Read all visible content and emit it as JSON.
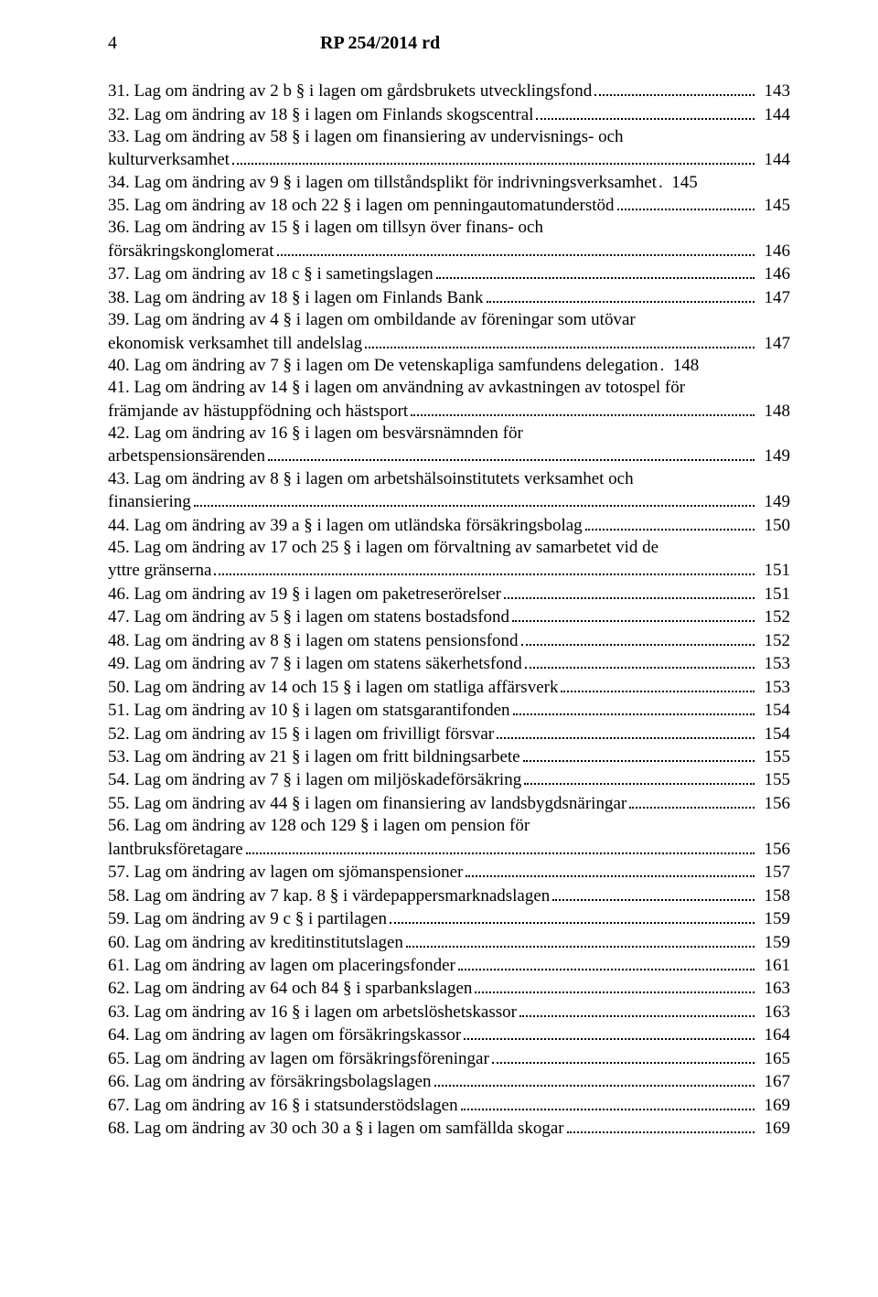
{
  "header": {
    "page_number": "4",
    "doc_title": "RP 254/2014 rd"
  },
  "toc": [
    {
      "lines": [
        "31. Lag om ändring av 2 b § i lagen om gårdsbrukets utvecklingsfond"
      ],
      "page": "143"
    },
    {
      "lines": [
        "32. Lag om ändring av 18 § i lagen om Finlands skogscentral"
      ],
      "page": "144"
    },
    {
      "lines": [
        "33. Lag om ändring av 58 § i lagen om finansiering av undervisnings- och",
        "kulturverksamhet"
      ],
      "page": "144"
    },
    {
      "lines": [
        "34. Lag om ändring av 9 § i lagen om tillståndsplikt för indrivningsverksamhet"
      ],
      "nodots": true,
      "page": "145"
    },
    {
      "lines": [
        "35. Lag om ändring av 18 och 22 § i lagen om penningautomatunderstöd"
      ],
      "page": "145"
    },
    {
      "lines": [
        "36. Lag om ändring av 15 § i lagen om tillsyn över finans- och",
        "försäkringskonglomerat"
      ],
      "page": "146"
    },
    {
      "lines": [
        "37. Lag om ändring av 18 c § i sametingslagen"
      ],
      "page": "146"
    },
    {
      "lines": [
        "38. Lag om ändring av 18 § i lagen om Finlands Bank"
      ],
      "page": "147"
    },
    {
      "lines": [
        "39. Lag om ändring av 4 § i lagen om ombildande av föreningar som utövar",
        "ekonomisk verksamhet till andelslag"
      ],
      "page": "147"
    },
    {
      "lines": [
        "40. Lag om ändring av 7 § i lagen om De vetenskapliga samfundens delegation"
      ],
      "nodots": true,
      "page": "148"
    },
    {
      "lines": [
        "41. Lag om ändring av 14 § i lagen om användning av avkastningen av totospel för",
        "främjande av hästuppfödning och hästsport"
      ],
      "page": "148"
    },
    {
      "lines": [
        "42. Lag om ändring av 16 § i lagen om besvärsnämnden för",
        "arbetspensionsärenden"
      ],
      "page": "149"
    },
    {
      "lines": [
        "43. Lag om ändring av 8 § i lagen om arbetshälsoinstitutets verksamhet och",
        "finansiering"
      ],
      "page": "149"
    },
    {
      "lines": [
        "44. Lag om ändring av 39 a § i lagen om utländska försäkringsbolag"
      ],
      "page": "150"
    },
    {
      "lines": [
        "45. Lag om ändring av 17 och 25 § i lagen om förvaltning av samarbetet vid de",
        "yttre gränserna"
      ],
      "page": "151"
    },
    {
      "lines": [
        "46. Lag om ändring av 19 § i lagen om paketreserörelser"
      ],
      "page": "151"
    },
    {
      "lines": [
        "47. Lag om ändring av 5 § i lagen om statens bostadsfond"
      ],
      "page": "152"
    },
    {
      "lines": [
        "48. Lag om ändring av 8 § i lagen om statens pensionsfond"
      ],
      "page": "152"
    },
    {
      "lines": [
        "49. Lag om ändring av 7 § i lagen om statens säkerhetsfond"
      ],
      "page": "153"
    },
    {
      "lines": [
        "50. Lag om ändring av 14 och 15 § i lagen om statliga affärsverk"
      ],
      "page": "153"
    },
    {
      "lines": [
        "51. Lag om ändring av 10 § i lagen om statsgarantifonden"
      ],
      "page": "154"
    },
    {
      "lines": [
        "52. Lag om ändring av 15 § i lagen om frivilligt försvar"
      ],
      "page": "154"
    },
    {
      "lines": [
        "53. Lag om ändring av 21 § i lagen om fritt bildningsarbete"
      ],
      "page": "155"
    },
    {
      "lines": [
        "54. Lag om ändring av 7 § i lagen om miljöskadeförsäkring"
      ],
      "page": "155"
    },
    {
      "lines": [
        "55. Lag om ändring av 44 § i lagen om finansiering av landsbygdsnäringar"
      ],
      "page": "156"
    },
    {
      "lines": [
        "56. Lag om ändring av 128 och 129 § i lagen om pension för",
        "lantbruksföretagare"
      ],
      "page": "156"
    },
    {
      "lines": [
        "57. Lag om ändring av lagen om sjömanspensioner"
      ],
      "page": "157"
    },
    {
      "lines": [
        "58. Lag om ändring av 7 kap. 8 § i värdepappersmarknadslagen"
      ],
      "page": "158"
    },
    {
      "lines": [
        "59. Lag om ändring av 9 c § i partilagen"
      ],
      "page": "159"
    },
    {
      "lines": [
        "60. Lag om ändring av kreditinstitutslagen"
      ],
      "page": "159"
    },
    {
      "lines": [
        "61. Lag om ändring av lagen om placeringsfonder"
      ],
      "page": "161"
    },
    {
      "lines": [
        "62. Lag om ändring av 64 och 84 § i sparbankslagen"
      ],
      "page": "163"
    },
    {
      "lines": [
        "63. Lag om ändring av 16 § i lagen om arbetslöshetskassor"
      ],
      "page": "163"
    },
    {
      "lines": [
        "64. Lag om ändring av lagen om försäkringskassor"
      ],
      "page": "164"
    },
    {
      "lines": [
        "65. Lag om ändring av lagen om försäkringsföreningar"
      ],
      "page": "165"
    },
    {
      "lines": [
        "66. Lag om ändring av försäkringsbolagslagen"
      ],
      "page": "167"
    },
    {
      "lines": [
        "67. Lag om ändring av 16 § i statsunderstödslagen"
      ],
      "page": "169"
    },
    {
      "lines": [
        "68. Lag om ändring av 30 och 30 a § i lagen om samfällda skogar"
      ],
      "page": "169"
    }
  ]
}
